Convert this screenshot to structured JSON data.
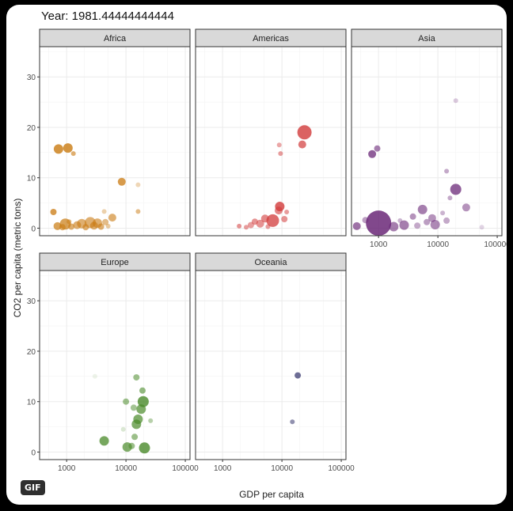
{
  "title_prefix": "Year: ",
  "year": "1981.44444444444",
  "badge": "GIF",
  "chart_data": {
    "type": "scatter",
    "xlabel": "GDP per capita",
    "ylabel": "CO2 per capita (metric tons)",
    "x_scale": "log10",
    "xlim": [
      350,
      120000
    ],
    "ylim": [
      -1.5,
      36
    ],
    "x_ticks": [
      1000,
      10000,
      100000
    ],
    "x_tick_labels": [
      "1000",
      "10000",
      "100000"
    ],
    "y_ticks": [
      0,
      10,
      20,
      30
    ],
    "y_tick_labels": [
      "0",
      "10",
      "20",
      "30"
    ],
    "grid": true,
    "panels": [
      {
        "name": "Africa",
        "color": "#c97a10",
        "points": [
          {
            "x": 730,
            "y": 15.7,
            "size": 6,
            "opacity": 0.8
          },
          {
            "x": 1050,
            "y": 15.9,
            "size": 6,
            "opacity": 0.8
          },
          {
            "x": 1300,
            "y": 14.8,
            "size": 3,
            "opacity": 0.6
          },
          {
            "x": 8500,
            "y": 9.2,
            "size": 5,
            "opacity": 0.75
          },
          {
            "x": 16000,
            "y": 8.6,
            "size": 3,
            "opacity": 0.3
          },
          {
            "x": 600,
            "y": 3.2,
            "size": 4,
            "opacity": 0.75
          },
          {
            "x": 16000,
            "y": 3.3,
            "size": 3,
            "opacity": 0.5
          },
          {
            "x": 5900,
            "y": 2.1,
            "size": 5,
            "opacity": 0.6
          },
          {
            "x": 4300,
            "y": 3.3,
            "size": 3,
            "opacity": 0.35
          },
          {
            "x": 700,
            "y": 0.4,
            "size": 5,
            "opacity": 0.7
          },
          {
            "x": 850,
            "y": 0.2,
            "size": 4,
            "opacity": 0.6
          },
          {
            "x": 950,
            "y": 0.8,
            "size": 7,
            "opacity": 0.7
          },
          {
            "x": 1200,
            "y": 0.3,
            "size": 4,
            "opacity": 0.6
          },
          {
            "x": 1500,
            "y": 0.6,
            "size": 5,
            "opacity": 0.6
          },
          {
            "x": 1800,
            "y": 0.9,
            "size": 6,
            "opacity": 0.6
          },
          {
            "x": 2100,
            "y": 0.2,
            "size": 4,
            "opacity": 0.6
          },
          {
            "x": 2500,
            "y": 1.1,
            "size": 7,
            "opacity": 0.6
          },
          {
            "x": 2900,
            "y": 0.5,
            "size": 5,
            "opacity": 0.6
          },
          {
            "x": 3300,
            "y": 1.0,
            "size": 6,
            "opacity": 0.6
          },
          {
            "x": 3800,
            "y": 0.3,
            "size": 4,
            "opacity": 0.6
          },
          {
            "x": 4500,
            "y": 1.2,
            "size": 4,
            "opacity": 0.5
          },
          {
            "x": 1100,
            "y": 1.3,
            "size": 3,
            "opacity": 0.5
          },
          {
            "x": 5000,
            "y": 0.4,
            "size": 3,
            "opacity": 0.4
          }
        ]
      },
      {
        "name": "Americas",
        "color": "#d23b3b",
        "points": [
          {
            "x": 24000,
            "y": 19.0,
            "size": 9,
            "opacity": 0.8
          },
          {
            "x": 9000,
            "y": 16.5,
            "size": 3,
            "opacity": 0.45
          },
          {
            "x": 22000,
            "y": 16.6,
            "size": 5,
            "opacity": 0.7
          },
          {
            "x": 9500,
            "y": 14.8,
            "size": 3,
            "opacity": 0.5
          },
          {
            "x": 9200,
            "y": 4.3,
            "size": 6,
            "opacity": 0.8
          },
          {
            "x": 8800,
            "y": 3.5,
            "size": 5,
            "opacity": 0.6
          },
          {
            "x": 7000,
            "y": 1.5,
            "size": 8,
            "opacity": 0.75
          },
          {
            "x": 5200,
            "y": 1.9,
            "size": 5,
            "opacity": 0.6
          },
          {
            "x": 11000,
            "y": 1.8,
            "size": 4,
            "opacity": 0.55
          },
          {
            "x": 4300,
            "y": 0.9,
            "size": 5,
            "opacity": 0.55
          },
          {
            "x": 3500,
            "y": 1.3,
            "size": 4,
            "opacity": 0.55
          },
          {
            "x": 3000,
            "y": 0.6,
            "size": 4,
            "opacity": 0.5
          },
          {
            "x": 2500,
            "y": 0.2,
            "size": 3,
            "opacity": 0.5
          },
          {
            "x": 1900,
            "y": 0.4,
            "size": 3,
            "opacity": 0.55
          },
          {
            "x": 5800,
            "y": 0.3,
            "size": 3,
            "opacity": 0.5
          },
          {
            "x": 12000,
            "y": 3.2,
            "size": 3,
            "opacity": 0.5
          }
        ]
      },
      {
        "name": "Asia",
        "color": "#6b2878",
        "points": [
          {
            "x": 1000,
            "y": 1.0,
            "size": 16,
            "opacity": 0.85
          },
          {
            "x": 780,
            "y": 14.7,
            "size": 5,
            "opacity": 0.75
          },
          {
            "x": 950,
            "y": 15.8,
            "size": 4,
            "opacity": 0.6
          },
          {
            "x": 20000,
            "y": 25.3,
            "size": 3,
            "opacity": 0.25
          },
          {
            "x": 20000,
            "y": 7.7,
            "size": 7,
            "opacity": 0.75
          },
          {
            "x": 14000,
            "y": 11.3,
            "size": 3,
            "opacity": 0.4
          },
          {
            "x": 30000,
            "y": 4.1,
            "size": 5,
            "opacity": 0.5
          },
          {
            "x": 16000,
            "y": 6.0,
            "size": 3,
            "opacity": 0.4
          },
          {
            "x": 5500,
            "y": 3.7,
            "size": 6,
            "opacity": 0.6
          },
          {
            "x": 8000,
            "y": 2.0,
            "size": 5,
            "opacity": 0.5
          },
          {
            "x": 3800,
            "y": 2.3,
            "size": 4,
            "opacity": 0.5
          },
          {
            "x": 2700,
            "y": 0.6,
            "size": 6,
            "opacity": 0.6
          },
          {
            "x": 1800,
            "y": 0.3,
            "size": 6,
            "opacity": 0.6
          },
          {
            "x": 430,
            "y": 0.4,
            "size": 5,
            "opacity": 0.65
          },
          {
            "x": 600,
            "y": 1.6,
            "size": 4,
            "opacity": 0.45
          },
          {
            "x": 9000,
            "y": 0.7,
            "size": 6,
            "opacity": 0.55
          },
          {
            "x": 14000,
            "y": 1.5,
            "size": 4,
            "opacity": 0.4
          },
          {
            "x": 12000,
            "y": 3.0,
            "size": 3,
            "opacity": 0.35
          },
          {
            "x": 6500,
            "y": 1.2,
            "size": 4,
            "opacity": 0.45
          },
          {
            "x": 4500,
            "y": 0.5,
            "size": 4,
            "opacity": 0.4
          },
          {
            "x": 2300,
            "y": 1.5,
            "size": 3,
            "opacity": 0.35
          },
          {
            "x": 55000,
            "y": 0.2,
            "size": 3,
            "opacity": 0.2
          }
        ]
      },
      {
        "name": "Europe",
        "color": "#4a8a2a",
        "points": [
          {
            "x": 15000,
            "y": 14.8,
            "size": 4,
            "opacity": 0.55
          },
          {
            "x": 19000,
            "y": 12.2,
            "size": 4,
            "opacity": 0.6
          },
          {
            "x": 10000,
            "y": 10.0,
            "size": 4,
            "opacity": 0.55
          },
          {
            "x": 19500,
            "y": 10.0,
            "size": 7,
            "opacity": 0.8
          },
          {
            "x": 18000,
            "y": 8.5,
            "size": 6,
            "opacity": 0.7
          },
          {
            "x": 13500,
            "y": 8.8,
            "size": 4,
            "opacity": 0.5
          },
          {
            "x": 16000,
            "y": 6.5,
            "size": 6,
            "opacity": 0.7
          },
          {
            "x": 15000,
            "y": 5.5,
            "size": 6,
            "opacity": 0.7
          },
          {
            "x": 26000,
            "y": 6.2,
            "size": 3,
            "opacity": 0.4
          },
          {
            "x": 14000,
            "y": 3.0,
            "size": 4,
            "opacity": 0.55
          },
          {
            "x": 4300,
            "y": 2.2,
            "size": 6,
            "opacity": 0.75
          },
          {
            "x": 10500,
            "y": 1.0,
            "size": 6,
            "opacity": 0.7
          },
          {
            "x": 12500,
            "y": 1.2,
            "size": 4,
            "opacity": 0.55
          },
          {
            "x": 20500,
            "y": 0.8,
            "size": 7,
            "opacity": 0.8
          },
          {
            "x": 3000,
            "y": 15.0,
            "size": 3,
            "opacity": 0.1
          },
          {
            "x": 9000,
            "y": 4.5,
            "size": 3,
            "opacity": 0.2
          }
        ]
      },
      {
        "name": "Oceania",
        "color": "#48487a",
        "points": [
          {
            "x": 18500,
            "y": 15.2,
            "size": 4,
            "opacity": 0.8
          },
          {
            "x": 15000,
            "y": 6.0,
            "size": 3,
            "opacity": 0.6
          }
        ]
      }
    ]
  }
}
